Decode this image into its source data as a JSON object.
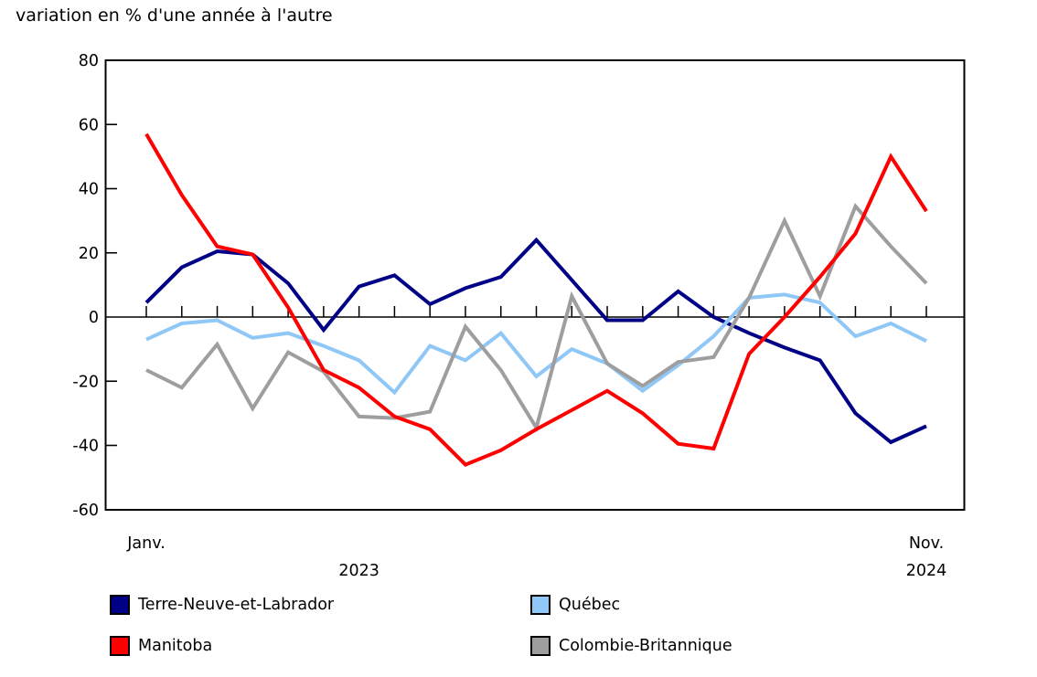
{
  "title": "variation en % d'une année à l'autre",
  "chart_data": {
    "type": "line",
    "title": "variation en % d'une année à l'autre",
    "x_axis": {
      "start_label": "Janv.",
      "end_label": "Nov.",
      "start_year": "2023",
      "end_year": "2024",
      "n_points": 23,
      "tick_marks": "one per month on the zero baseline"
    },
    "y_axis": {
      "min": -60,
      "max": 80,
      "tick_step": 20,
      "tick_labels": [
        "80",
        "60",
        "40",
        "20",
        "0",
        "-20",
        "-40",
        "-60"
      ],
      "baseline": 0
    },
    "grid": "off",
    "legend_position": "bottom-two-columns",
    "series": [
      {
        "name": "Terre-Neuve-et-Labrador",
        "color": "#000087",
        "z": 1,
        "values": [
          4.5,
          15.5,
          20.5,
          19.5,
          10.5,
          -4,
          9.5,
          13,
          4,
          9,
          12.5,
          24,
          11.5,
          -1,
          -1,
          8,
          0,
          -5,
          -9.5,
          -13.5,
          -30,
          -39,
          -34
        ]
      },
      {
        "name": "Québec",
        "color": "#8FC7F7",
        "z": 2,
        "values": [
          -7,
          -2,
          -1,
          -6.5,
          -5,
          -9,
          -13.5,
          -23.5,
          -9,
          -13.5,
          -5,
          -18.5,
          -10,
          -14.5,
          -23,
          -15,
          -6,
          6,
          7,
          4.5,
          -6,
          -2,
          -7.5
        ]
      },
      {
        "name": "Manitoba",
        "color": "#FF0000",
        "z": 4,
        "values": [
          57,
          38,
          22,
          19.5,
          3,
          -16.5,
          -22,
          -31,
          -35,
          -46,
          -41.5,
          -35,
          -29,
          -23,
          -30,
          -39.5,
          -41,
          -11.5,
          0,
          12.5,
          26,
          50,
          33
        ]
      },
      {
        "name": "Colombie-Britannique",
        "color": "#9E9E9E",
        "z": 3,
        "values": [
          -16.5,
          -22,
          -8.5,
          -28.5,
          -11,
          -17,
          -31,
          -31.5,
          -29.5,
          -3,
          -16.5,
          -34.5,
          6.5,
          -14.5,
          -21.5,
          -14,
          -12.5,
          6,
          30,
          6.5,
          34.5,
          22,
          10.5
        ]
      }
    ]
  }
}
